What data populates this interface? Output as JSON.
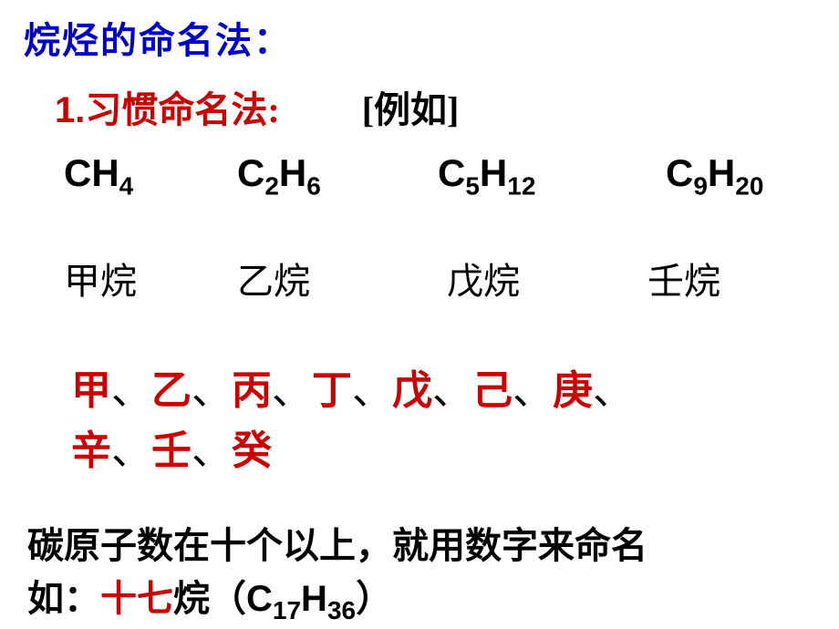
{
  "title": "烷烃的命名法：",
  "section": {
    "num": "1.",
    "label": "习惯命名法:",
    "example": "[例如]"
  },
  "formulas": {
    "f1": {
      "base1": "CH",
      "sub1": "4"
    },
    "f2": {
      "base1": "C",
      "sub1": "2",
      "base2": "H",
      "sub2": "6"
    },
    "f3": {
      "base1": "C",
      "sub1": "5",
      "base2": "H",
      "sub2": "12"
    },
    "f4": {
      "base1": "C",
      "sub1": "9",
      "base2": "H",
      "sub2": "20"
    }
  },
  "names": {
    "n1": "甲烷",
    "n2": "乙烷",
    "n3": "戊烷",
    "n4": "壬烷"
  },
  "stems": {
    "s1": "甲",
    "s2": "乙",
    "s3": "丙",
    "s4": "丁",
    "s5": "戊",
    "s6": "己",
    "s7": "庚",
    "s8": "辛",
    "s9": "壬",
    "s10": "癸",
    "sep": "、"
  },
  "note": {
    "line1": "碳原子数在十个以上，就用数字来命名",
    "prefix": "如：",
    "highlight": "十七",
    "suffix1": "烷（",
    "fml_base1": "C",
    "fml_sub1": "17",
    "fml_base2": "H",
    "fml_sub2": "36",
    "suffix2": "）"
  },
  "colors": {
    "title": "#0000cc",
    "accent": "#cc0000",
    "text": "#000000",
    "background": "#ffffff"
  }
}
